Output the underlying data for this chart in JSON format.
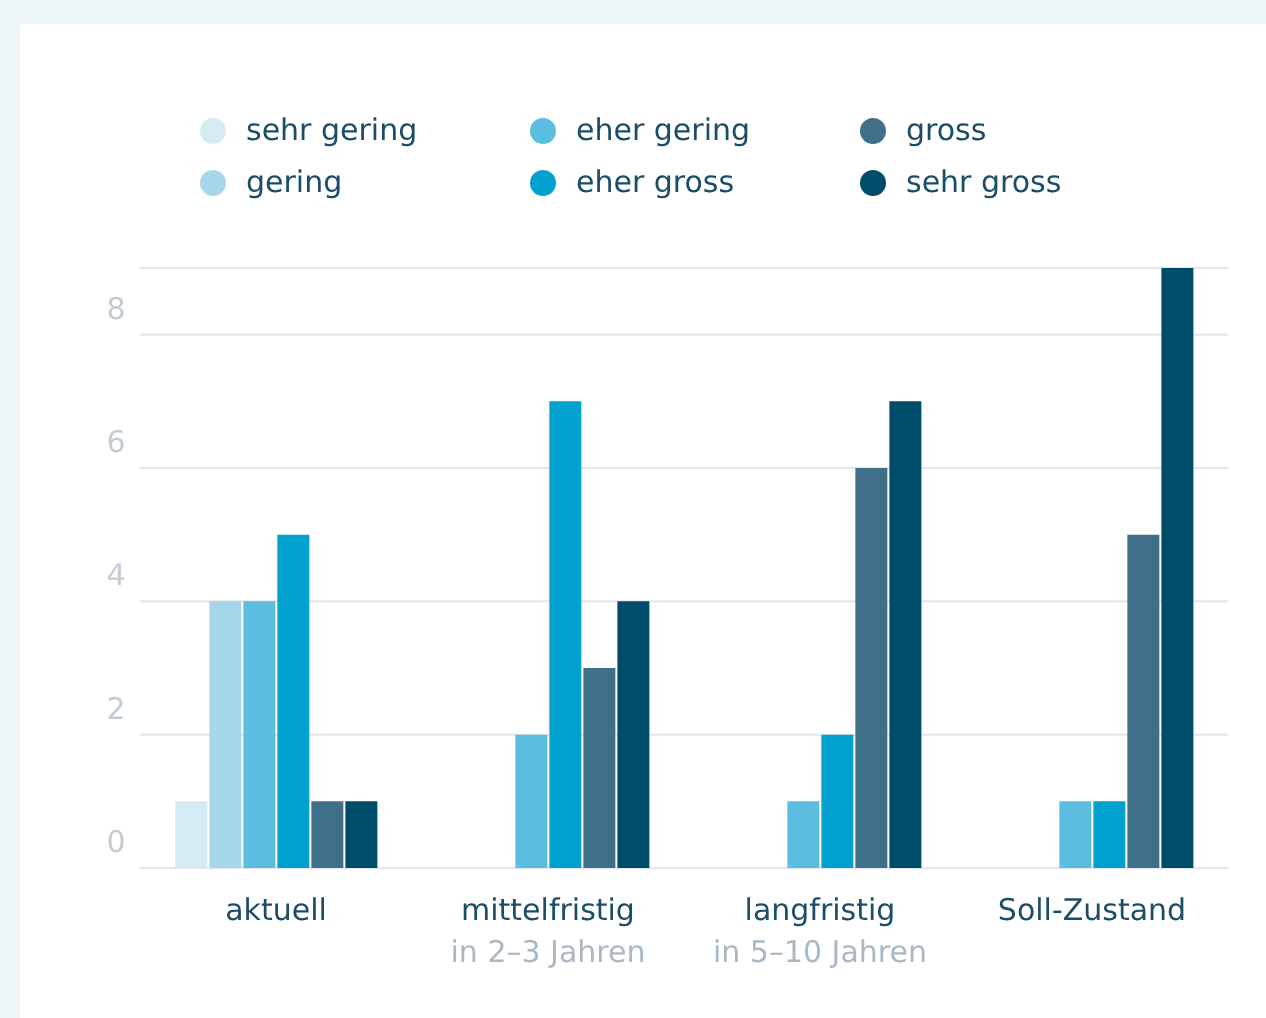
{
  "chart_data": {
    "type": "bar",
    "categories": [
      "aktuell",
      "mittelfristig\nin 2–3 Jahren",
      "langfristig\nin 5–10 Jahren",
      "Soll-Zustand"
    ],
    "series": [
      {
        "name": "sehr gering",
        "color": "#d4ebf4",
        "values": [
          1,
          0,
          0,
          0
        ]
      },
      {
        "name": "gering",
        "color": "#a6d6ec",
        "values": [
          4,
          0,
          0,
          0
        ]
      },
      {
        "name": "eher gering",
        "color": "#5bbde0",
        "values": [
          4,
          2,
          1,
          1
        ]
      },
      {
        "name": "eher gross",
        "color": "#00a0cf",
        "values": [
          5,
          7,
          2,
          1
        ]
      },
      {
        "name": "gross",
        "color": "#3f6f8a",
        "values": [
          1,
          3,
          6,
          5
        ]
      },
      {
        "name": "sehr gross",
        "color": "#004d6b",
        "values": [
          1,
          4,
          7,
          9
        ]
      }
    ],
    "ylim": [
      0,
      9
    ],
    "yticks": [
      0,
      2,
      4,
      6,
      8
    ],
    "grid": "y",
    "legend": "top"
  }
}
